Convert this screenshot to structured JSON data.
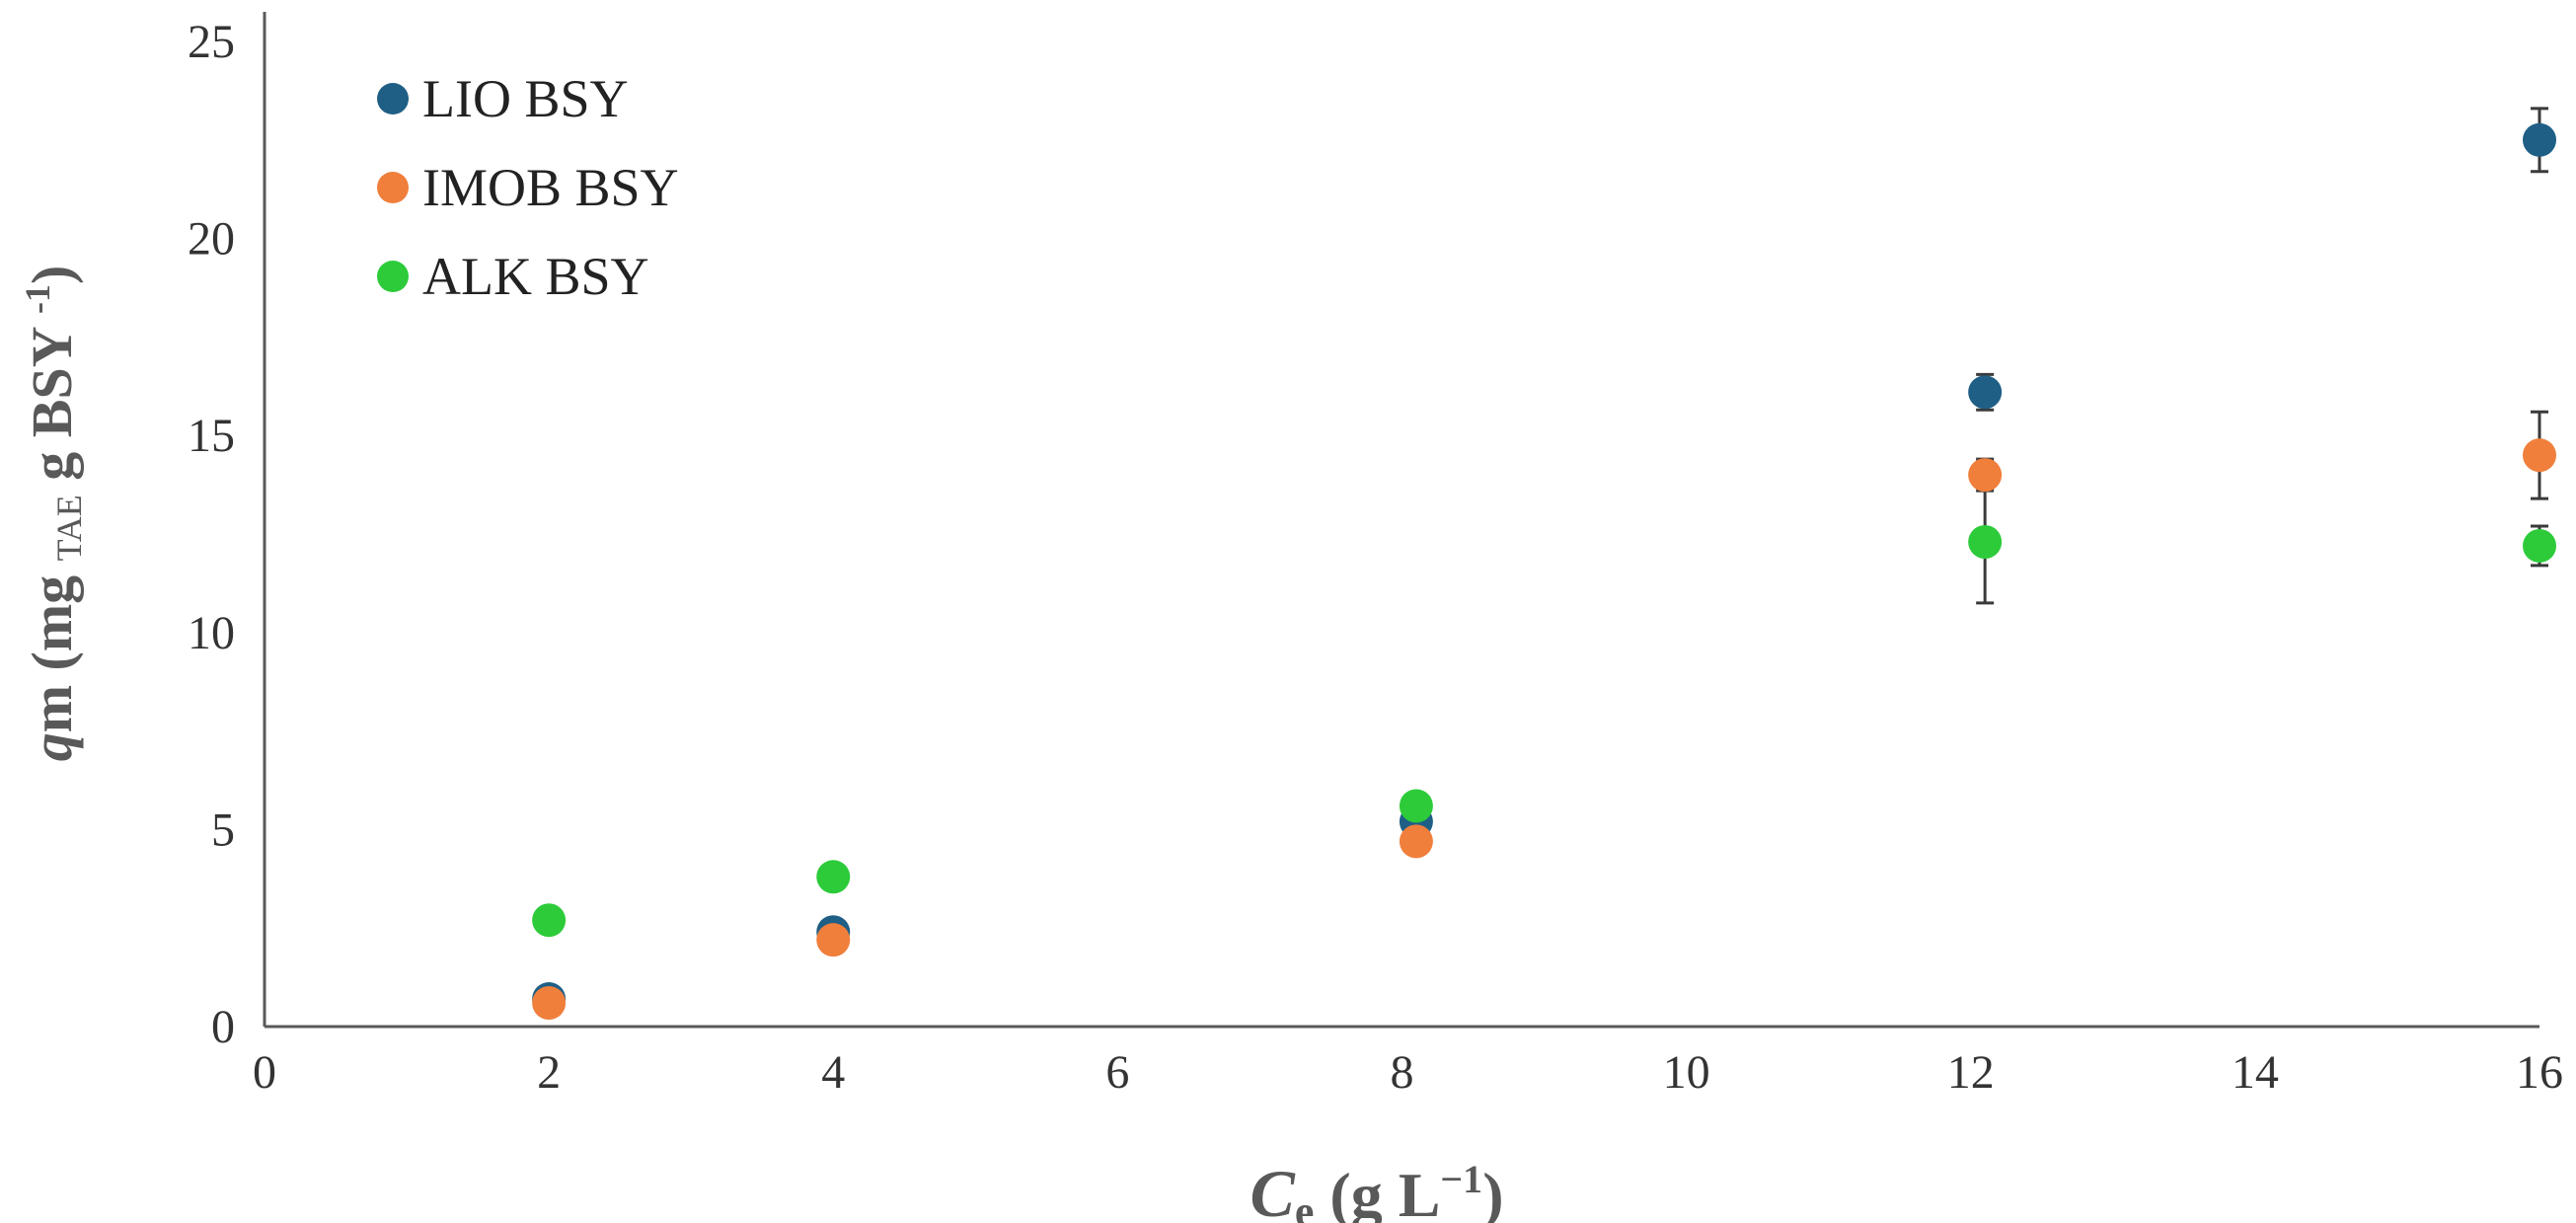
{
  "chart_data": {
    "type": "scatter",
    "title": "",
    "xlabel": {
      "main": "C",
      "sub": "e",
      "rest": " (g L",
      "sup": "−1",
      "close": ")"
    },
    "ylabel": {
      "q": "q",
      "m": "m (mg ",
      "sub": "TAE",
      "mid": " g BSY ",
      "sup": "-1",
      "close": ")"
    },
    "xlim": [
      0,
      16
    ],
    "ylim": [
      0,
      25
    ],
    "xticks": [
      "0",
      "2",
      "4",
      "6",
      "8",
      "10",
      "12",
      "14",
      "16"
    ],
    "yticks": [
      "0",
      "5",
      "10",
      "15",
      "20",
      "25"
    ],
    "grid": false,
    "legend_position": "top-left",
    "series": [
      {
        "name": "LIO BSY",
        "color": "#1F5F86",
        "points": [
          {
            "x": 2.0,
            "y": 0.7,
            "err": 0.1
          },
          {
            "x": 4.0,
            "y": 2.4,
            "err": 0.15
          },
          {
            "x": 8.1,
            "y": 5.2,
            "err": 0.15
          },
          {
            "x": 12.1,
            "y": 16.1,
            "err": 0.45
          },
          {
            "x": 16.0,
            "y": 22.5,
            "err": 0.8
          }
        ]
      },
      {
        "name": "IMOB BSY",
        "color": "#F07F3C",
        "points": [
          {
            "x": 2.0,
            "y": 0.6,
            "err": 0.1
          },
          {
            "x": 4.0,
            "y": 2.2,
            "err": 0.15
          },
          {
            "x": 8.1,
            "y": 4.7,
            "err": 0.15
          },
          {
            "x": 12.1,
            "y": 14.0,
            "err": 0.4
          },
          {
            "x": 16.0,
            "y": 14.5,
            "err": 1.1
          }
        ]
      },
      {
        "name": "ALK BSY",
        "color": "#2DCB3A",
        "points": [
          {
            "x": 2.0,
            "y": 2.7,
            "err": 0.1
          },
          {
            "x": 4.0,
            "y": 3.8,
            "err": 0.15
          },
          {
            "x": 8.1,
            "y": 5.6,
            "err": 0.15
          },
          {
            "x": 12.1,
            "y": 12.3,
            "err": 1.55
          },
          {
            "x": 16.0,
            "y": 12.2,
            "err": 0.5
          }
        ]
      }
    ]
  }
}
